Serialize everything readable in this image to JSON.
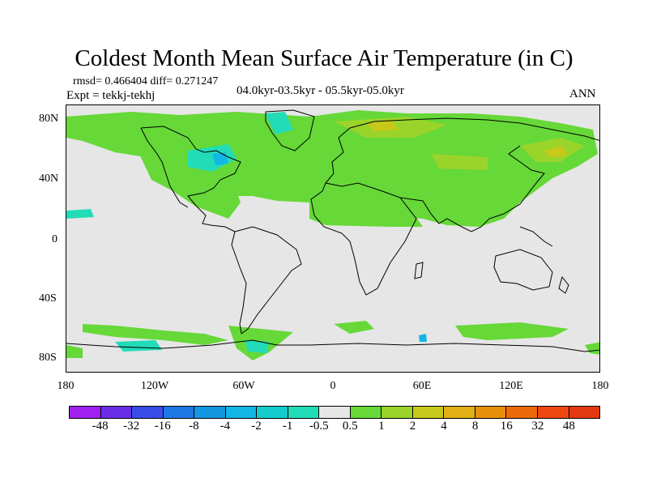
{
  "title": "Coldest Month Mean Surface Air Temperature (in C)",
  "stats": "rmsd= 0.466404 diff= 0.271247",
  "experiment": "Expt = tekkj-tekhj",
  "period": "04.0kyr-03.5kyr - 05.5kyr-05.0kyr",
  "season": "ANN",
  "map": {
    "lat_ticks": [
      "80N",
      "40N",
      "0",
      "40S",
      "80S"
    ],
    "lon_ticks": [
      "180",
      "120W",
      "60W",
      "0",
      "60E",
      "120E",
      "180"
    ],
    "background_color": "#e6e6e6"
  },
  "colorbar": {
    "labels": [
      "-48",
      "-32",
      "-16",
      "-8",
      "-4",
      "-2",
      "-1",
      "-0.5",
      "0.5",
      "1",
      "2",
      "4",
      "8",
      "16",
      "32",
      "48"
    ],
    "colors": [
      "#a020f0",
      "#6a2ee6",
      "#3a4ce8",
      "#1e78e6",
      "#1496e0",
      "#12b6e4",
      "#14cccc",
      "#22dcb8",
      "#e6e6e6",
      "#66d838",
      "#9ad42a",
      "#c8c81a",
      "#e0b014",
      "#e8900e",
      "#ec6a0a",
      "#ee4810",
      "#e43a12"
    ]
  }
}
